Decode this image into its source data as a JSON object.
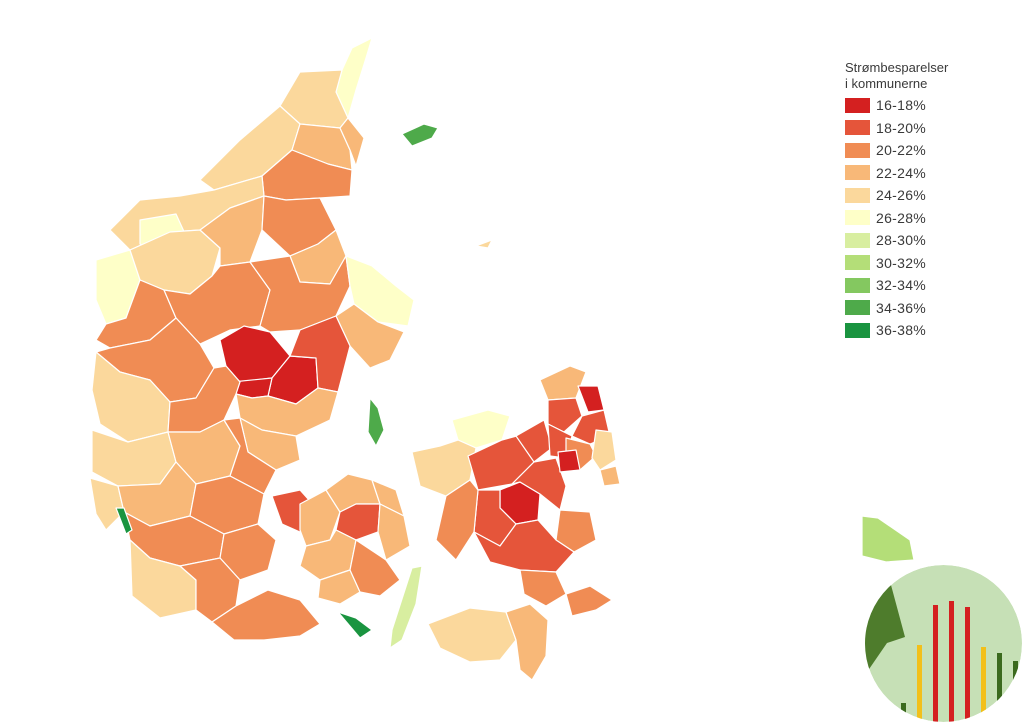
{
  "legend": {
    "title_line1": "Strømbesparelser",
    "title_line2": "i kommunerne",
    "items": [
      {
        "label": "16-18%",
        "color": "#d42020"
      },
      {
        "label": "18-20%",
        "color": "#e5553a"
      },
      {
        "label": "20-22%",
        "color": "#f08c54"
      },
      {
        "label": "22-24%",
        "color": "#f8b878"
      },
      {
        "label": "24-26%",
        "color": "#fbd89c"
      },
      {
        "label": "26-28%",
        "color": "#feffc8"
      },
      {
        "label": "28-30%",
        "color": "#d8eea0"
      },
      {
        "label": "30-32%",
        "color": "#b4de78"
      },
      {
        "label": "32-34%",
        "color": "#84c860"
      },
      {
        "label": "34-36%",
        "color": "#4eaa4a"
      },
      {
        "label": "36-38%",
        "color": "#1a9440"
      }
    ]
  },
  "map": {
    "region_icons": [
      "jutland",
      "funen",
      "zealand",
      "islands",
      "bornholm"
    ]
  },
  "badge": {
    "icon": "bar-chart-logo-icon",
    "bg_color": "#c6e0b6",
    "bar_colors": [
      "#d42020",
      "#f2c01a",
      "#3b6a1e"
    ]
  }
}
